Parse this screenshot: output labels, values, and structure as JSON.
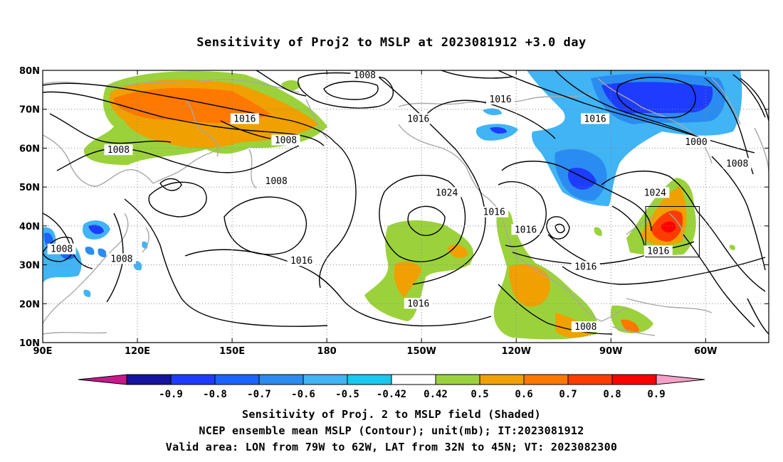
{
  "title": "Sensitivity of Proj2 to MSLP at 2023081912 +3.0 day",
  "map": {
    "lon_range": [
      "90E",
      "40W"
    ],
    "lat_range": [
      "10N",
      "80N"
    ],
    "x_ticks": [
      "90E",
      "120E",
      "150E",
      "180",
      "150W",
      "120W",
      "90W",
      "60W"
    ],
    "y_ticks": [
      "80N",
      "70N",
      "60N",
      "50N",
      "40N",
      "30N",
      "20N",
      "10N"
    ],
    "grid": "dotted",
    "contour_labels": [
      {
        "text": "1008",
        "lon": -168,
        "lat": 78.7
      },
      {
        "text": "1016",
        "lon": 154,
        "lat": 67.5
      },
      {
        "text": "1008",
        "lon": 167,
        "lat": 62
      },
      {
        "text": "1008",
        "lon": 114,
        "lat": 59.5
      },
      {
        "text": "1008",
        "lon": 164,
        "lat": 51.5
      },
      {
        "text": "1016",
        "lon": -151,
        "lat": 67.5
      },
      {
        "text": "1016",
        "lon": -125,
        "lat": 72.5
      },
      {
        "text": "1016",
        "lon": -95,
        "lat": 67.5
      },
      {
        "text": "1000",
        "lon": -63,
        "lat": 61.5
      },
      {
        "text": "1008",
        "lon": -50,
        "lat": 56
      },
      {
        "text": "1024",
        "lon": -142,
        "lat": 48.5
      },
      {
        "text": "1024",
        "lon": -76,
        "lat": 48.5
      },
      {
        "text": "1016",
        "lon": -127,
        "lat": 43.5
      },
      {
        "text": "1016",
        "lon": -117,
        "lat": 39
      },
      {
        "text": "1016",
        "lon": -75,
        "lat": 33.5
      },
      {
        "text": "1016",
        "lon": -98,
        "lat": 29.5
      },
      {
        "text": "1008",
        "lon": 96,
        "lat": 34
      },
      {
        "text": "1008",
        "lon": 115,
        "lat": 31.5
      },
      {
        "text": "1016",
        "lon": 172,
        "lat": 31
      },
      {
        "text": "1016",
        "lon": -151,
        "lat": 20
      },
      {
        "text": "1008",
        "lon": -98,
        "lat": 14
      }
    ],
    "valid_box": {
      "lon_from": -79,
      "lon_to": -62,
      "lat_from": 32,
      "lat_to": 45
    }
  },
  "colorbar": {
    "ticks": [
      "-0.9",
      "-0.8",
      "-0.7",
      "-0.6",
      "-0.5",
      "-0.42",
      "0.42",
      "0.5",
      "0.6",
      "0.7",
      "0.8",
      "0.9"
    ],
    "colors": [
      "#1414a0",
      "#1e3cff",
      "#1a64ff",
      "#2a8cf0",
      "#40b4f5",
      "#18c8f0",
      "#ffffff",
      "#9bd23c",
      "#f0a000",
      "#ff7800",
      "#ff3c00",
      "#ff0000"
    ],
    "low_end_color": "#c8188c",
    "high_end_color": "#f5a0c8"
  },
  "captions": {
    "line1": "Sensitivity of Proj. 2 to MSLP field (Shaded)",
    "line2": "NCEP ensemble mean MSLP (Contour); unit(mb); IT:2023081912",
    "line3": "Valid area: LON from 79W to 62W, LAT from 32N to 45N; VT: 2023082300"
  }
}
